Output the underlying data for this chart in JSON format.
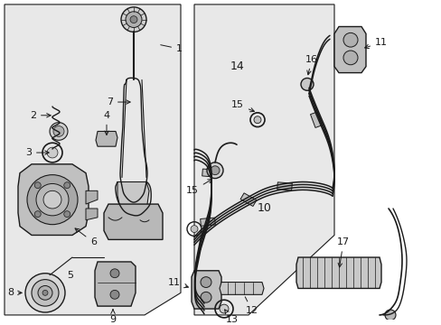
{
  "bg_color": "#ffffff",
  "panel_color": "#e8e8e8",
  "line_color": "#1a1a1a",
  "figsize": [
    4.89,
    3.6
  ],
  "dpi": 100
}
